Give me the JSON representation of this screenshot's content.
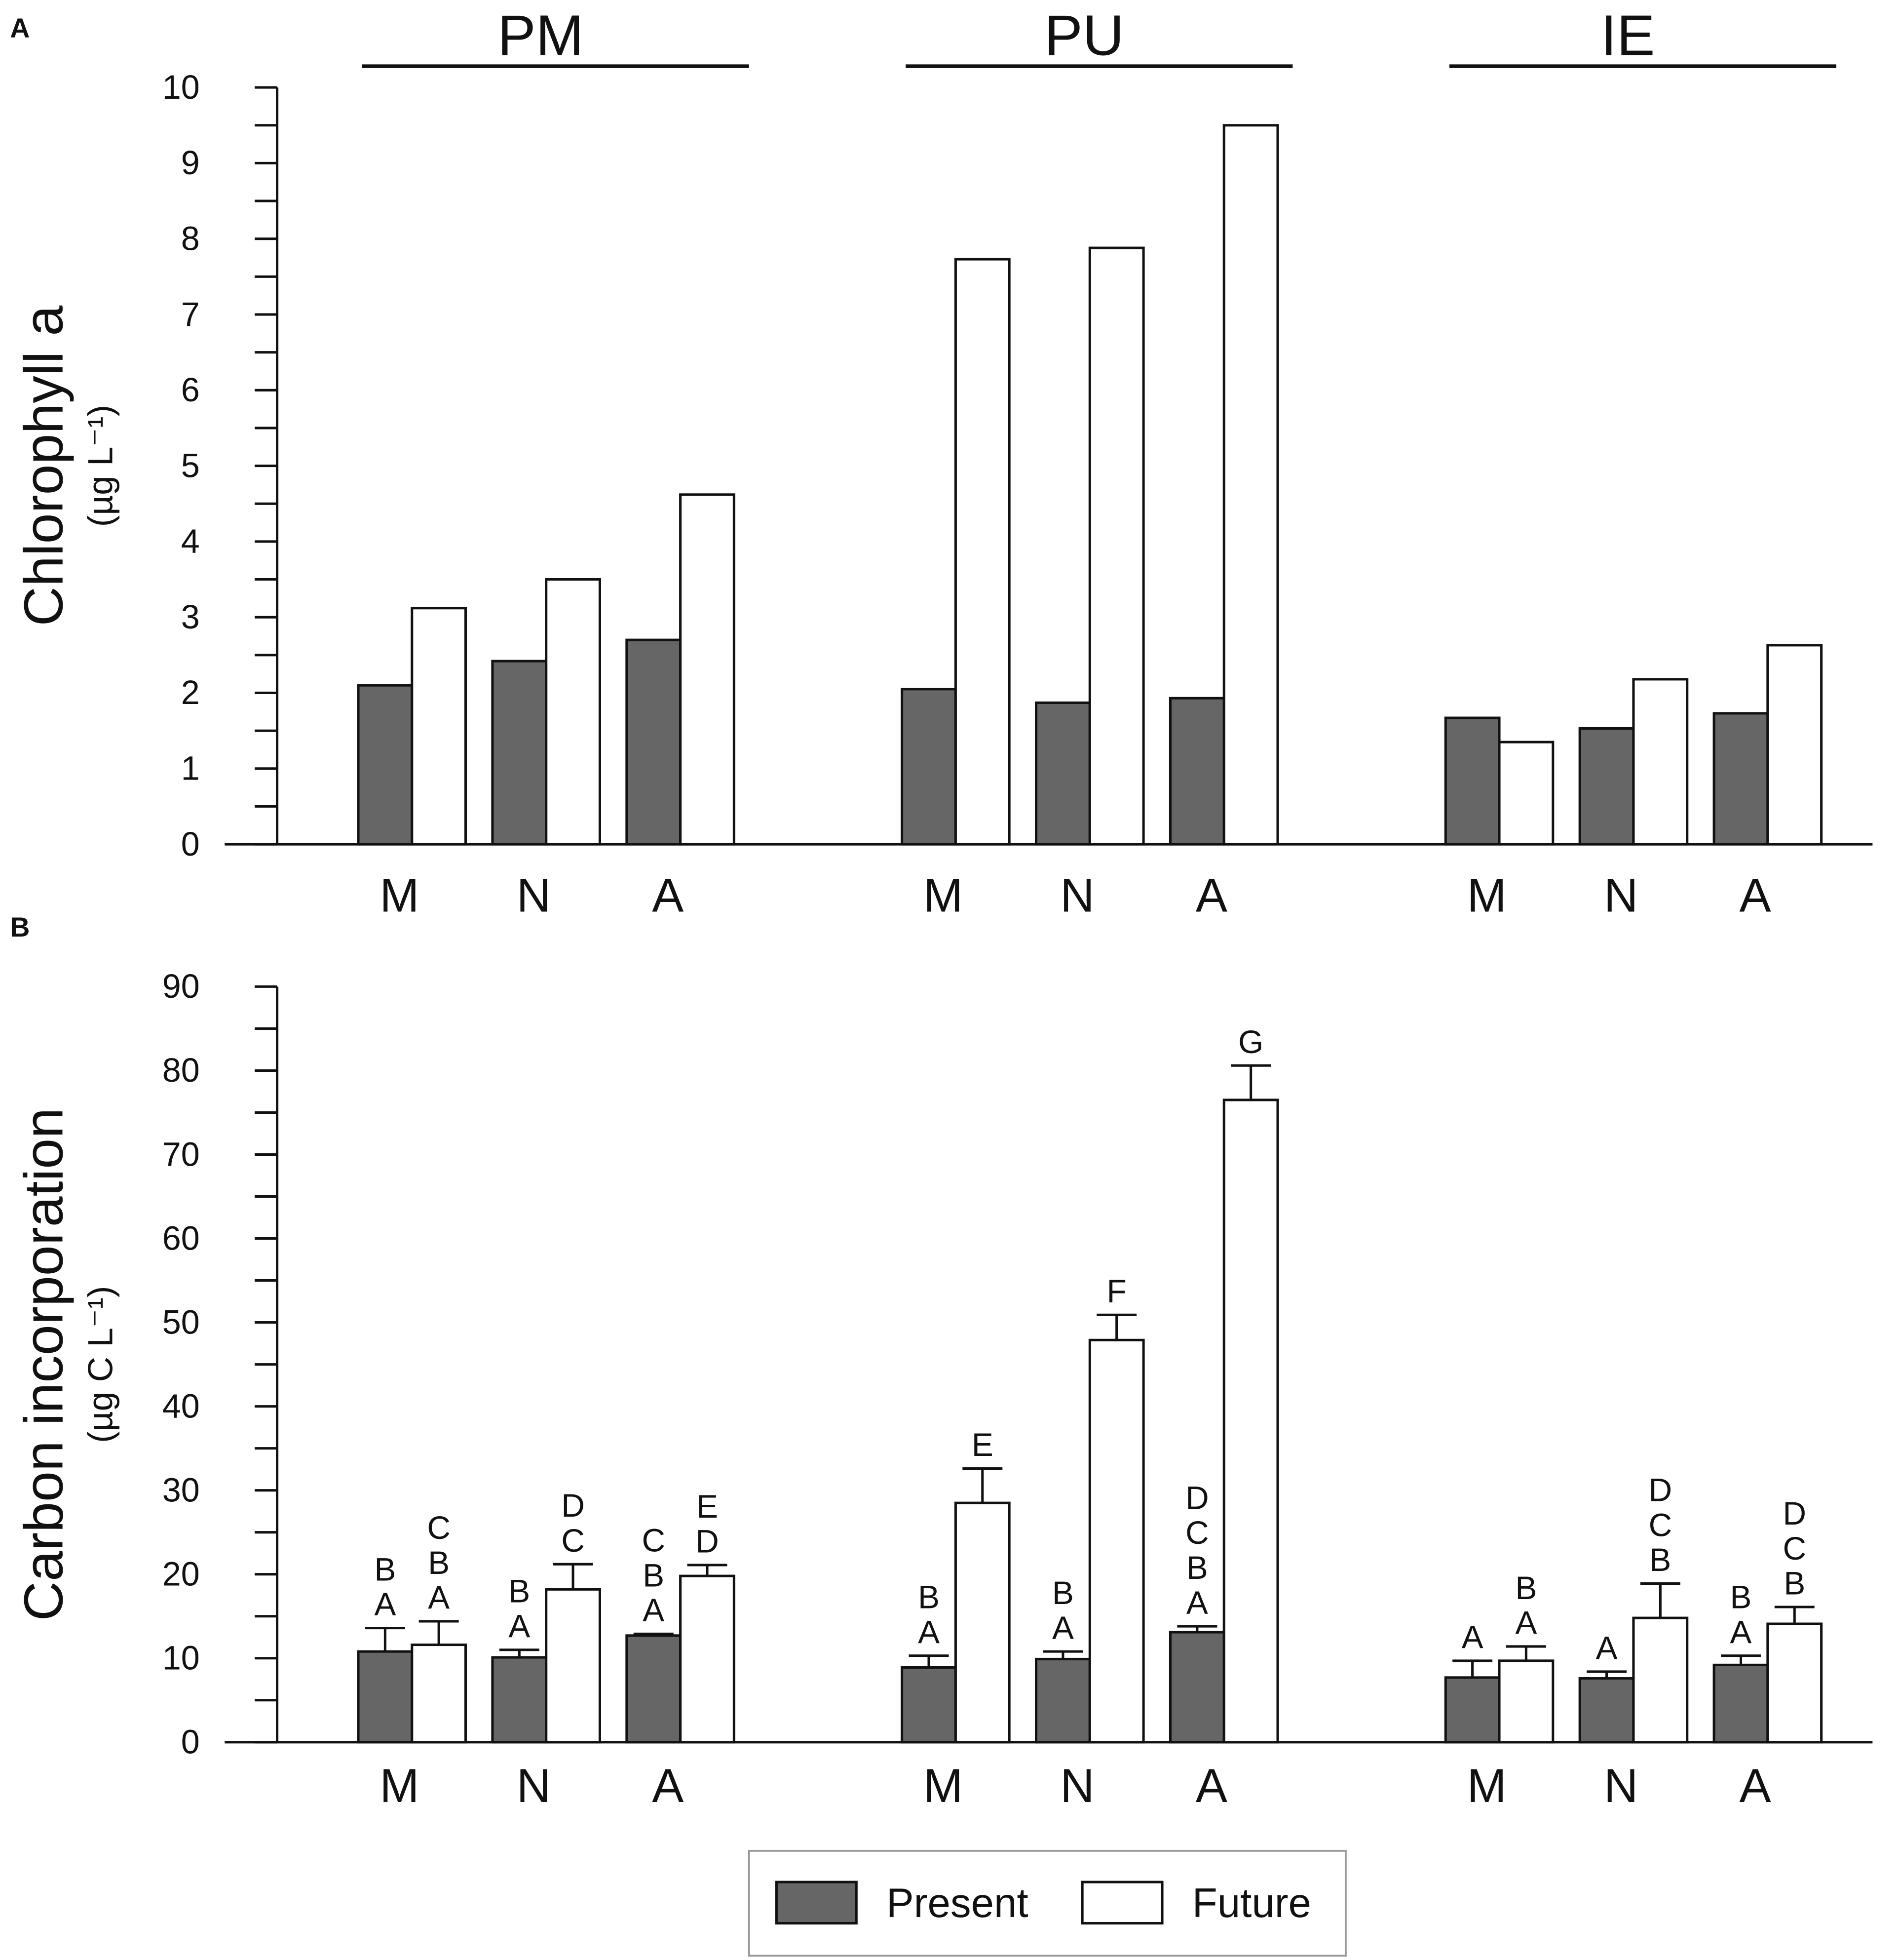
{
  "chart_data": [
    {
      "type": "bar",
      "panel_label": "A",
      "groups": [
        "PM",
        "PU",
        "IE"
      ],
      "categories": [
        "M",
        "N",
        "A",
        "M",
        "N",
        "A",
        "M",
        "N",
        "A"
      ],
      "y_label": "Chlorophyll a",
      "y_units": "(µg L⁻¹)",
      "ylim": [
        0,
        10
      ],
      "yticks": [
        0,
        1,
        2,
        3,
        4,
        5,
        6,
        7,
        8,
        9,
        10
      ],
      "series": [
        {
          "color": "#666666",
          "values": [
            2.1,
            2.42,
            2.7,
            2.05,
            1.87,
            1.93,
            1.67,
            1.53,
            1.73
          ]
        },
        {
          "color": "#ffffff",
          "values": [
            3.12,
            3.5,
            4.62,
            7.73,
            7.88,
            9.5,
            1.35,
            2.18,
            2.63
          ]
        }
      ]
    },
    {
      "type": "bar",
      "panel_label": "B",
      "categories": [
        "M",
        "N",
        "A",
        "M",
        "N",
        "A",
        "M",
        "N",
        "A"
      ],
      "y_label": "Carbon incorporation",
      "y_units": "(µg C L⁻¹)",
      "ylim": [
        0,
        90
      ],
      "yticks": [
        0,
        10,
        20,
        30,
        40,
        50,
        60,
        70,
        80,
        90
      ],
      "series": [
        {
          "name": "Present",
          "color": "#666666",
          "values": [
            10.8,
            10.1,
            12.7,
            8.9,
            9.9,
            13.1,
            7.7,
            7.6,
            9.2
          ],
          "errors": [
            2.8,
            0.9,
            0.2,
            1.4,
            0.9,
            0.7,
            2.0,
            0.8,
            1.1
          ],
          "letters": [
            [
              "B",
              "A"
            ],
            [
              "B",
              "A"
            ],
            [
              "C",
              "B",
              "A"
            ],
            [
              "B",
              "A"
            ],
            [
              "B",
              "A"
            ],
            [
              "D",
              "C",
              "B",
              "A"
            ],
            [
              "A"
            ],
            [
              "A"
            ],
            [
              "B",
              "A"
            ]
          ]
        },
        {
          "name": "Future",
          "color": "#ffffff",
          "values": [
            11.6,
            18.2,
            19.8,
            28.5,
            47.9,
            76.5,
            9.7,
            14.8,
            14.1
          ],
          "errors": [
            2.8,
            3.0,
            1.3,
            4.1,
            3.0,
            4.1,
            1.7,
            4.1,
            2.0
          ],
          "letters": [
            [
              "C",
              "B",
              "A"
            ],
            [
              "D",
              "C"
            ],
            [
              "E",
              "D"
            ],
            [
              "E"
            ],
            [
              "F"
            ],
            [
              "G"
            ],
            [
              "B",
              "A"
            ],
            [
              "D",
              "C",
              "B"
            ],
            [
              "D",
              "C",
              "B"
            ]
          ]
        }
      ]
    }
  ]
}
